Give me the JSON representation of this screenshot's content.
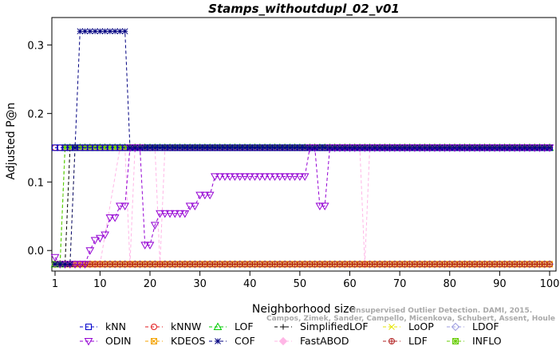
{
  "chart_data": {
    "type": "line",
    "title": "Stamps_withoutdupl_02_v01",
    "xlabel": "Neighborhood size",
    "ylabel": "Adjusted P@n",
    "xlim": [
      1,
      100
    ],
    "ylim": [
      -0.03,
      0.34
    ],
    "x_ticks": [
      1,
      10,
      20,
      30,
      40,
      50,
      60,
      70,
      80,
      90,
      100
    ],
    "y_ticks": [
      0.0,
      0.1,
      0.2,
      0.3
    ],
    "y_tick_labels": [
      "0.0",
      "0.1",
      "0.2",
      "0.3"
    ],
    "grid": false,
    "legend_position": "bottom",
    "series": [
      {
        "name": "kNN",
        "color": "#0000cc",
        "marker": "square",
        "segments": [
          {
            "x": [
              1,
              2,
              3,
              4,
              5,
              6,
              100
            ],
            "y": [
              0.15,
              0.15,
              0.15,
              0.15,
              0.15,
              0.15,
              0.15
            ]
          }
        ]
      },
      {
        "name": "kNNW",
        "color": "#e31a1c",
        "marker": "circle",
        "segments": [
          {
            "x": [
              1,
              2,
              3,
              4,
              5,
              100
            ],
            "y": [
              0.15,
              0.15,
              0.15,
              0.15,
              0.15,
              0.15
            ]
          }
        ]
      },
      {
        "name": "LOF",
        "color": "#00cc00",
        "marker": "triangle-up",
        "segments": [
          {
            "x": [
              1,
              2,
              3,
              4,
              100
            ],
            "y": [
              -0.02,
              -0.02,
              0.15,
              0.15,
              0.15
            ]
          }
        ]
      },
      {
        "name": "SimplifiedLOF",
        "color": "#000000",
        "marker": "plus",
        "segments": [
          {
            "x": [
              1,
              2,
              3,
              4,
              100
            ],
            "y": [
              -0.02,
              -0.02,
              -0.02,
              0.15,
              0.15
            ]
          }
        ]
      },
      {
        "name": "LoOP",
        "color": "#e6e600",
        "marker": "x",
        "segments": [
          {
            "x": [
              1,
              2,
              3,
              4,
              5,
              100
            ],
            "y": [
              -0.02,
              -0.02,
              -0.02,
              -0.02,
              0.15,
              0.15
            ]
          }
        ]
      },
      {
        "name": "LDOF",
        "color": "#9e9ee0",
        "marker": "diamond",
        "segments": [
          {
            "x": [
              1,
              3,
              5,
              100
            ],
            "y": [
              -0.02,
              -0.02,
              -0.02,
              -0.02
            ]
          }
        ]
      },
      {
        "name": "ODIN",
        "color": "#9400d3",
        "marker": "triangle-down",
        "segments": [
          {
            "x": [
              1,
              2,
              3,
              4,
              5,
              6,
              7,
              8,
              9,
              10,
              11,
              12,
              13,
              14,
              15,
              16,
              17,
              18,
              19,
              20,
              21,
              22,
              23,
              24,
              25,
              26,
              27,
              28,
              29,
              30,
              31,
              32,
              33,
              34,
              35,
              36,
              37,
              38,
              39,
              40,
              41,
              42,
              43,
              44,
              45,
              46,
              47,
              48,
              49,
              50,
              51,
              52,
              53,
              54,
              55,
              56,
              57,
              58,
              59,
              60,
              61,
              62,
              63,
              64,
              65,
              66,
              67,
              68,
              69,
              70,
              71,
              72,
              73,
              74,
              75,
              76,
              77,
              78,
              79,
              80,
              81,
              82,
              83,
              84,
              85,
              86,
              87,
              88,
              89,
              90,
              91,
              92,
              93,
              94,
              95,
              96,
              97,
              98,
              99,
              100
            ],
            "y": [
              -0.01,
              -0.02,
              -0.02,
              -0.02,
              -0.02,
              -0.02,
              -0.02,
              0.0,
              0.015,
              0.018,
              0.023,
              0.048,
              0.048,
              0.065,
              0.065,
              0.15,
              0.15,
              0.15,
              0.008,
              0.008,
              0.037,
              0.054,
              0.054,
              0.054,
              0.054,
              0.054,
              0.054,
              0.065,
              0.065,
              0.081,
              0.081,
              0.081,
              0.108,
              0.108,
              0.108,
              0.108,
              0.108,
              0.108,
              0.108,
              0.108,
              0.108,
              0.108,
              0.108,
              0.108,
              0.108,
              0.108,
              0.108,
              0.108,
              0.108,
              0.108,
              0.108,
              0.15,
              0.15,
              0.065,
              0.065,
              0.15,
              0.15,
              0.15,
              0.15,
              0.15,
              0.15,
              0.15,
              0.15,
              0.15,
              0.15,
              0.15,
              0.15,
              0.15,
              0.15,
              0.15,
              0.15,
              0.15,
              0.15,
              0.15,
              0.15,
              0.15,
              0.15,
              0.15,
              0.15,
              0.15,
              0.15,
              0.15,
              0.15,
              0.15,
              0.15,
              0.15,
              0.15,
              0.15,
              0.15,
              0.15,
              0.15,
              0.15,
              0.15,
              0.15,
              0.15,
              0.15,
              0.15,
              0.15,
              0.15,
              0.15
            ]
          }
        ]
      },
      {
        "name": "KDEOS",
        "color": "#f4a300",
        "marker": "box-x",
        "segments": [
          {
            "x": [
              1,
              100
            ],
            "y": [
              -0.02,
              -0.02
            ]
          }
        ]
      },
      {
        "name": "COF",
        "color": "#000080",
        "marker": "asterisk",
        "segments": [
          {
            "x": [
              1,
              2,
              3,
              4,
              5,
              6,
              7,
              8,
              9,
              10,
              11,
              12,
              13,
              14,
              15,
              16,
              17,
              100
            ],
            "y": [
              -0.02,
              -0.02,
              -0.02,
              -0.02,
              0.15,
              0.32,
              0.32,
              0.32,
              0.32,
              0.32,
              0.32,
              0.32,
              0.32,
              0.32,
              0.32,
              0.15,
              0.15,
              0.15
            ]
          }
        ]
      },
      {
        "name": "FastABOD",
        "color": "#ffb6e6",
        "marker": "diamond-filled",
        "segments": [
          {
            "x": [
              1,
              6,
              10,
              14,
              15,
              16,
              17,
              21,
              22,
              23,
              24,
              62,
              63,
              64,
              65,
              100
            ],
            "y": [
              -0.02,
              -0.02,
              -0.02,
              0.15,
              0.15,
              -0.02,
              0.15,
              0.15,
              -0.02,
              0.15,
              0.15,
              0.15,
              -0.02,
              0.15,
              0.15,
              0.15
            ]
          }
        ]
      },
      {
        "name": "LDF",
        "color": "#b22222",
        "marker": "circle-plus",
        "segments": [
          {
            "x": [
              1,
              100
            ],
            "y": [
              -0.02,
              -0.02
            ]
          }
        ]
      },
      {
        "name": "INFLO",
        "color": "#66cc00",
        "marker": "square-star",
        "segments": [
          {
            "x": [
              1,
              2,
              3,
              100
            ],
            "y": [
              -0.02,
              -0.02,
              0.15,
              0.15
            ]
          }
        ]
      }
    ]
  },
  "watermark": {
    "line1": "Campos, Zimek, Sander, Campello, Micenkova, Schubert, Assent, Houle",
    "line2": "Unsupervised Outlier Detection. DAMI, 2015.",
    "line3": "Campos, Zimek, Sander, Campello, Micenkova, Schubert, Assent, Houle"
  }
}
